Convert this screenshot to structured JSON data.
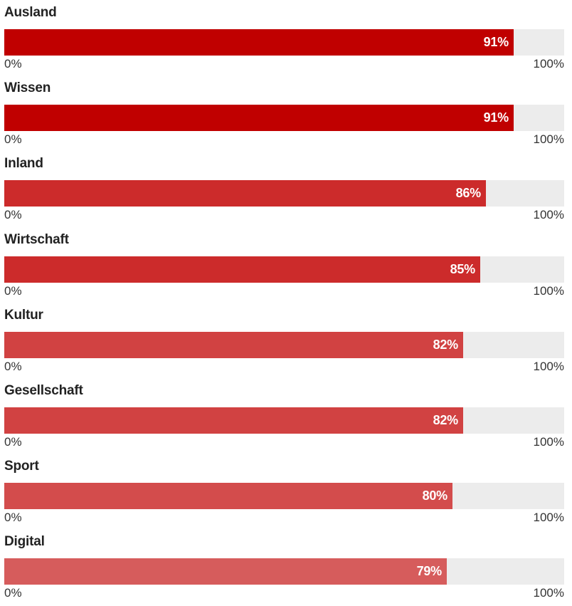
{
  "chart_data": {
    "type": "bar",
    "orientation": "horizontal",
    "categories": [
      "Ausland",
      "Wissen",
      "Inland",
      "Wirtschaft",
      "Kultur",
      "Gesellschaft",
      "Sport",
      "Digital"
    ],
    "values": [
      91,
      91,
      86,
      85,
      82,
      82,
      80,
      79
    ],
    "value_labels": [
      "91%",
      "91%",
      "86%",
      "85%",
      "82%",
      "82%",
      "80%",
      "79%"
    ],
    "colors": [
      "#c00000",
      "#c00000",
      "#cc2b2b",
      "#cc2b2b",
      "#d14242",
      "#d14242",
      "#d34c4c",
      "#d65c5c"
    ],
    "xlim": [
      0,
      100
    ],
    "axis_min_label": "0%",
    "axis_max_label": "100%",
    "track_color": "#ececec",
    "label_color": "#ffffff",
    "title": "",
    "xlabel": "",
    "ylabel": "",
    "grid": false,
    "legend": "none"
  }
}
